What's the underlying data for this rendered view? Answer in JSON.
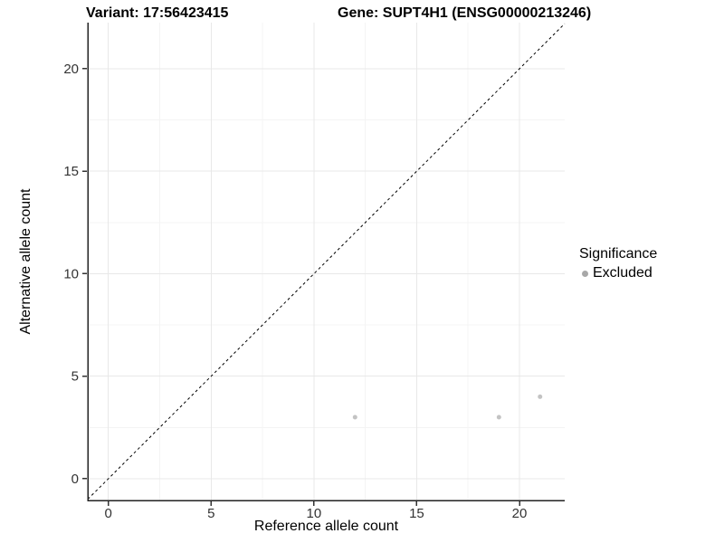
{
  "chart_data": {
    "type": "scatter",
    "titles": {
      "left": "Variant: 17:56423415",
      "right": "Gene: SUPT4H1 (ENSG00000213246)"
    },
    "xlabel": "Reference allele count",
    "ylabel": "Alternative allele count",
    "xlim": [
      -1.0,
      22.2
    ],
    "ylim": [
      -1.06,
      22.25
    ],
    "xticks": [
      0,
      5,
      10,
      15,
      20
    ],
    "yticks": [
      0,
      5,
      10,
      15,
      20
    ],
    "minor_xticks": [
      2.5,
      7.5,
      12.5,
      17.5
    ],
    "minor_yticks": [
      2.5,
      7.5,
      12.5,
      17.5
    ],
    "grid": "major+minor",
    "identity_line": {
      "style": "dashed",
      "slope": 1,
      "intercept": 0,
      "color": "#000000"
    },
    "series": [
      {
        "name": "Excluded",
        "color": "#c3c3c3",
        "point_radius": 2.5,
        "points": [
          {
            "x": 12,
            "y": 3
          },
          {
            "x": 19,
            "y": 3
          },
          {
            "x": 21,
            "y": 4
          }
        ]
      }
    ],
    "legend": {
      "title": "Significance",
      "position": "right",
      "entries": [
        {
          "label": "Excluded",
          "color": "#a8a8a8"
        }
      ]
    },
    "colors": {
      "grid_major": "#e8e8e8",
      "grid_minor": "#f4f4f4",
      "axis_line": "#222222",
      "tick_mark": "#333333",
      "tick_label": "#333333"
    }
  }
}
